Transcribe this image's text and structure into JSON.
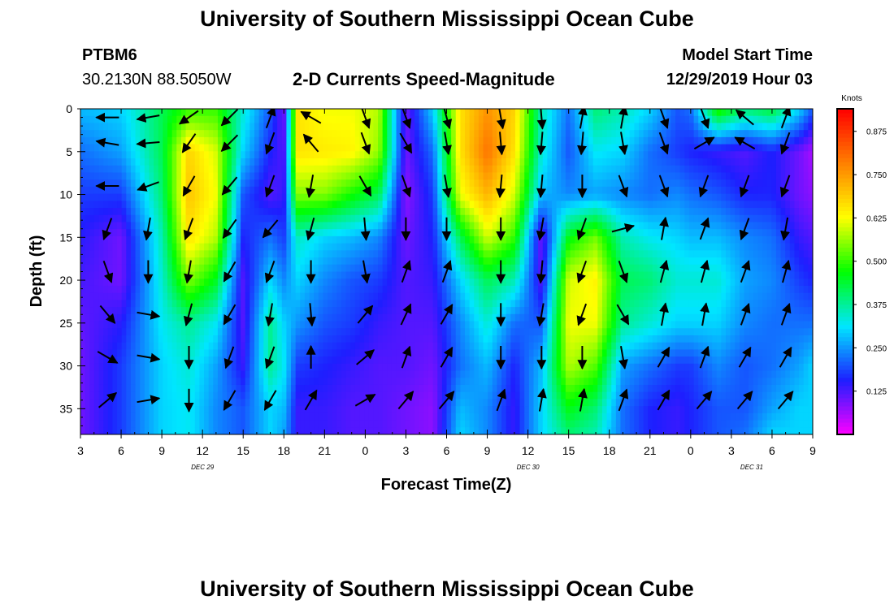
{
  "page": {
    "title_top": "University of Southern Mississippi Ocean Cube",
    "title_bottom": "University of Southern Mississippi Ocean Cube",
    "station_id": "PTBM6",
    "station_coords": "30.2130N 88.5050W",
    "chart_title": "2-D Currents Speed-Magnitude",
    "model_start_label": "Model Start Time",
    "model_start_value": "12/29/2019 Hour 03"
  },
  "chart_data": {
    "type": "heatmap",
    "title": "2-D Currents Speed-Magnitude",
    "xlabel": "Forecast Time(Z)",
    "ylabel": "Depth (ft)",
    "x_tick_labels": [
      "3",
      "6",
      "9",
      "12",
      "15",
      "18",
      "21",
      "0",
      "3",
      "6",
      "9",
      "12",
      "15",
      "18",
      "21",
      "0",
      "3",
      "6",
      "9"
    ],
    "x_date_labels": [
      {
        "label": "DEC 29",
        "at_tick": 3
      },
      {
        "label": "DEC 30",
        "at_tick": 11
      },
      {
        "label": "DEC 31",
        "at_tick": 16.5
      }
    ],
    "y_ticks": [
      0,
      5,
      10,
      15,
      20,
      25,
      30,
      35
    ],
    "ylim": [
      0,
      38
    ],
    "y_inverted": true,
    "x_hours": [
      0,
      54
    ],
    "x_start": "2019-12-29 03Z",
    "colorbar": {
      "unit": "Knots",
      "tick_values": [
        0.125,
        0.25,
        0.375,
        0.5,
        0.625,
        0.75,
        0.875
      ],
      "tick_labels": [
        "0.125",
        "0.250",
        "0.375",
        "0.500",
        "0.625",
        "0.750",
        "0.875"
      ],
      "range": [
        0,
        0.94
      ],
      "colors": [
        "#ff00ff",
        "#1e1eff",
        "#00e6ff",
        "#00ff00",
        "#ffff00",
        "#ff8000",
        "#ff0000"
      ]
    },
    "speed_profile_knots": {
      "hours": [
        0,
        3,
        6,
        8,
        10,
        12,
        14,
        15,
        16,
        18,
        20,
        22,
        24,
        26,
        28,
        30,
        32,
        34,
        36,
        38,
        40,
        42,
        44,
        45,
        47,
        49,
        51,
        53,
        54
      ],
      "depths_ft": [
        0,
        5,
        10,
        15,
        20,
        25,
        30,
        35,
        38
      ],
      "values": [
        [
          0.28,
          0.22,
          0.18,
          0.15,
          0.13,
          0.11,
          0.1,
          0.1,
          0.1
        ],
        [
          0.3,
          0.26,
          0.18,
          0.1,
          0.1,
          0.15,
          0.18,
          0.18,
          0.18
        ],
        [
          0.42,
          0.42,
          0.4,
          0.36,
          0.34,
          0.32,
          0.3,
          0.3,
          0.3
        ],
        [
          0.5,
          0.68,
          0.7,
          0.66,
          0.55,
          0.38,
          0.34,
          0.32,
          0.32
        ],
        [
          0.5,
          0.6,
          0.62,
          0.58,
          0.45,
          0.32,
          0.26,
          0.24,
          0.24
        ],
        [
          0.34,
          0.3,
          0.2,
          0.16,
          0.12,
          0.12,
          0.14,
          0.2,
          0.2
        ],
        [
          0.2,
          0.16,
          0.12,
          0.22,
          0.3,
          0.38,
          0.38,
          0.3,
          0.3
        ],
        [
          0.1,
          0.12,
          0.14,
          0.18,
          0.24,
          0.3,
          0.32,
          0.28,
          0.26
        ],
        [
          0.66,
          0.66,
          0.55,
          0.35,
          0.3,
          0.25,
          0.18,
          0.14,
          0.14
        ],
        [
          0.62,
          0.65,
          0.55,
          0.3,
          0.24,
          0.2,
          0.16,
          0.14,
          0.14
        ],
        [
          0.62,
          0.64,
          0.48,
          0.28,
          0.2,
          0.18,
          0.14,
          0.12,
          0.12
        ],
        [
          0.58,
          0.56,
          0.42,
          0.24,
          0.18,
          0.14,
          0.12,
          0.12,
          0.12
        ],
        [
          0.1,
          0.1,
          0.08,
          0.1,
          0.12,
          0.12,
          0.12,
          0.1,
          0.1
        ],
        [
          0.3,
          0.22,
          0.18,
          0.16,
          0.14,
          0.12,
          0.1,
          0.08,
          0.08
        ],
        [
          0.66,
          0.66,
          0.62,
          0.42,
          0.3,
          0.24,
          0.22,
          0.28,
          0.3
        ],
        [
          0.76,
          0.8,
          0.72,
          0.6,
          0.42,
          0.34,
          0.28,
          0.24,
          0.24
        ],
        [
          0.68,
          0.66,
          0.6,
          0.5,
          0.36,
          0.22,
          0.16,
          0.14,
          0.14
        ],
        [
          0.36,
          0.34,
          0.28,
          0.1,
          0.12,
          0.2,
          0.28,
          0.3,
          0.3
        ],
        [
          0.22,
          0.2,
          0.24,
          0.46,
          0.6,
          0.62,
          0.58,
          0.46,
          0.4
        ],
        [
          0.4,
          0.32,
          0.26,
          0.54,
          0.64,
          0.62,
          0.52,
          0.4,
          0.36
        ],
        [
          0.36,
          0.3,
          0.24,
          0.36,
          0.42,
          0.38,
          0.26,
          0.22,
          0.22
        ],
        [
          0.3,
          0.22,
          0.22,
          0.32,
          0.4,
          0.34,
          0.22,
          0.16,
          0.16
        ],
        [
          0.2,
          0.18,
          0.24,
          0.3,
          0.34,
          0.3,
          0.18,
          0.14,
          0.14
        ],
        [
          0.22,
          0.16,
          0.22,
          0.28,
          0.34,
          0.3,
          0.18,
          0.16,
          0.16
        ],
        [
          0.5,
          0.14,
          0.2,
          0.28,
          0.34,
          0.3,
          0.24,
          0.2,
          0.2
        ],
        [
          0.4,
          0.12,
          0.16,
          0.24,
          0.26,
          0.24,
          0.2,
          0.2,
          0.22
        ],
        [
          0.44,
          0.16,
          0.16,
          0.22,
          0.24,
          0.22,
          0.22,
          0.26,
          0.3
        ],
        [
          0.3,
          0.1,
          0.1,
          0.14,
          0.18,
          0.22,
          0.26,
          0.3,
          0.3
        ],
        [
          0.2,
          0.06,
          0.08,
          0.12,
          0.16,
          0.22,
          0.3,
          0.3,
          0.3
        ]
      ]
    },
    "current_vectors": {
      "hours": [
        2,
        5,
        8,
        11,
        14,
        17,
        21,
        24,
        27,
        31,
        34,
        37,
        40,
        43,
        46,
        49,
        52
      ],
      "depths_ft": [
        1,
        4,
        9,
        14,
        19,
        24,
        29,
        34
      ],
      "direction_deg": [
        [
          270,
          260,
          235,
          225,
          20,
          300,
          160,
          160,
          165,
          170,
          175,
          10,
          10,
          160,
          160,
          310,
          20
        ],
        [
          280,
          265,
          215,
          225,
          200,
          320,
          160,
          150,
          170,
          175,
          185,
          185,
          170,
          160,
          60,
          300,
          200
        ],
        [
          270,
          250,
          210,
          220,
          200,
          190,
          150,
          160,
          170,
          185,
          185,
          180,
          160,
          160,
          200,
          200,
          200
        ],
        [
          200,
          190,
          200,
          215,
          220,
          195,
          175,
          180,
          180,
          180,
          190,
          200,
          75,
          10,
          20,
          200,
          190
        ],
        [
          160,
          180,
          190,
          210,
          200,
          180,
          170,
          20,
          20,
          180,
          185,
          200,
          160,
          15,
          15,
          20,
          15
        ],
        [
          140,
          100,
          195,
          210,
          190,
          175,
          40,
          25,
          30,
          180,
          190,
          200,
          150,
          10,
          10,
          20,
          20
        ],
        [
          120,
          100,
          180,
          200,
          200,
          0,
          50,
          20,
          30,
          180,
          180,
          180,
          170,
          30,
          20,
          30,
          30
        ],
        [
          50,
          80,
          180,
          210,
          210,
          30,
          60,
          40,
          40,
          20,
          10,
          10,
          20,
          30,
          40,
          40,
          40
        ]
      ]
    }
  }
}
